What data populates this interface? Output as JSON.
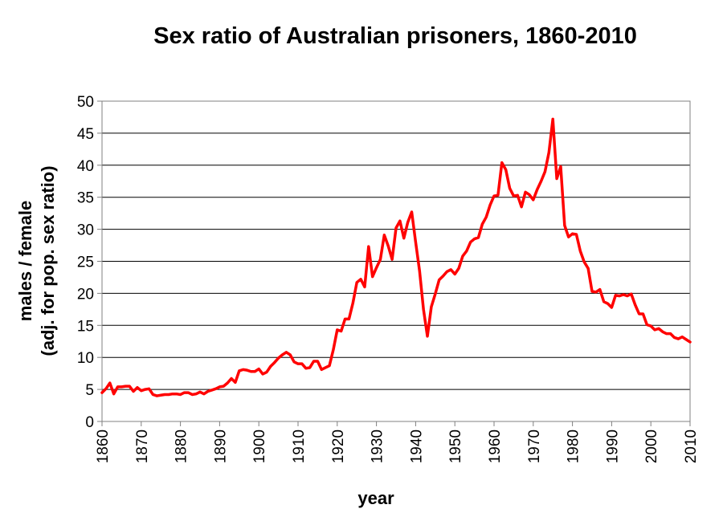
{
  "chart_data": {
    "type": "line",
    "title": "Sex ratio of Australian prisoners, 1860-2010",
    "xlabel": "year",
    "ylabel_line1": "males / female",
    "ylabel_line2": "(adj. for pop. sex ratio)",
    "xlim": [
      1860,
      2010
    ],
    "ylim": [
      0,
      50
    ],
    "x_ticks": [
      1860,
      1870,
      1880,
      1890,
      1900,
      1910,
      1920,
      1930,
      1940,
      1950,
      1960,
      1970,
      1980,
      1990,
      2000,
      2010
    ],
    "y_ticks": [
      0,
      5,
      10,
      15,
      20,
      25,
      30,
      35,
      40,
      45,
      50
    ],
    "grid": "horizontal",
    "legend": "none",
    "line_color": "#ff0000",
    "series": [
      {
        "x": [
          1860,
          1861,
          1862,
          1863,
          1864,
          1865,
          1866,
          1867,
          1868,
          1869,
          1870,
          1871,
          1872,
          1873,
          1874,
          1875,
          1876,
          1877,
          1878,
          1879,
          1880,
          1881,
          1882,
          1883,
          1884,
          1885,
          1886,
          1887,
          1888,
          1889,
          1890,
          1891,
          1892,
          1893,
          1894,
          1895,
          1896,
          1897,
          1898,
          1899,
          1900,
          1901,
          1902,
          1903,
          1904,
          1905,
          1906,
          1907,
          1908,
          1909,
          1910,
          1911,
          1912,
          1913,
          1914,
          1915,
          1916,
          1917,
          1918,
          1919,
          1920,
          1921,
          1922,
          1923,
          1924,
          1925,
          1926,
          1927,
          1928,
          1929,
          1930,
          1931,
          1932,
          1933,
          1934,
          1935,
          1936,
          1937,
          1938,
          1939,
          1940,
          1941,
          1942,
          1943,
          1944,
          1945,
          1946,
          1947,
          1948,
          1949,
          1950,
          1951,
          1952,
          1953,
          1954,
          1955,
          1956,
          1957,
          1958,
          1959,
          1960,
          1961,
          1962,
          1963,
          1964,
          1965,
          1966,
          1967,
          1968,
          1969,
          1970,
          1971,
          1972,
          1973,
          1974,
          1975,
          1976,
          1977,
          1978,
          1979,
          1980,
          1981,
          1982,
          1983,
          1984,
          1985,
          1986,
          1987,
          1988,
          1989,
          1990,
          1991,
          1992,
          1993,
          1994,
          1995,
          1996,
          1997,
          1998,
          1999,
          2000,
          2001,
          2002,
          2003,
          2004,
          2005,
          2006,
          2007,
          2008,
          2009,
          2010
        ],
        "values": [
          4.5,
          5.1,
          6.0,
          4.3,
          5.4,
          5.4,
          5.5,
          5.5,
          4.7,
          5.3,
          4.8,
          5.0,
          5.1,
          4.2,
          4.0,
          4.1,
          4.2,
          4.2,
          4.3,
          4.3,
          4.2,
          4.5,
          4.5,
          4.2,
          4.3,
          4.6,
          4.3,
          4.7,
          4.9,
          5.1,
          5.4,
          5.5,
          6.0,
          6.7,
          6.1,
          7.9,
          8.1,
          8.0,
          7.8,
          7.8,
          8.2,
          7.4,
          7.7,
          8.6,
          9.2,
          9.9,
          10.4,
          10.8,
          10.4,
          9.3,
          9.0,
          9.0,
          8.3,
          8.4,
          9.4,
          9.4,
          8.1,
          8.4,
          8.7,
          11.2,
          14.3,
          14.1,
          16.0,
          16.0,
          18.5,
          21.7,
          22.2,
          21.0,
          27.3,
          22.6,
          24.0,
          25.3,
          29.1,
          27.4,
          25.3,
          30.2,
          31.3,
          28.6,
          31.1,
          32.7,
          28.0,
          23.5,
          17.5,
          13.3,
          17.9,
          19.9,
          22.1,
          22.7,
          23.4,
          23.7,
          23.0,
          23.9,
          25.8,
          26.6,
          28.0,
          28.5,
          28.7,
          30.8,
          31.9,
          33.8,
          35.2,
          35.3,
          40.4,
          39.3,
          36.4,
          35.2,
          35.3,
          33.5,
          35.8,
          35.4,
          34.6,
          36.2,
          37.5,
          39.0,
          42.0,
          47.2,
          37.9,
          39.8,
          30.6,
          28.8,
          29.3,
          29.2,
          26.6,
          24.9,
          23.9,
          20.3,
          20.2,
          20.6,
          18.7,
          18.4,
          17.8,
          19.7,
          19.6,
          19.8,
          19.6,
          19.9,
          18.2,
          16.8,
          16.8,
          15.1,
          14.9,
          14.3,
          14.5,
          14.0,
          13.7,
          13.7,
          13.1,
          12.9,
          13.2,
          12.8,
          12.4
        ]
      }
    ]
  }
}
